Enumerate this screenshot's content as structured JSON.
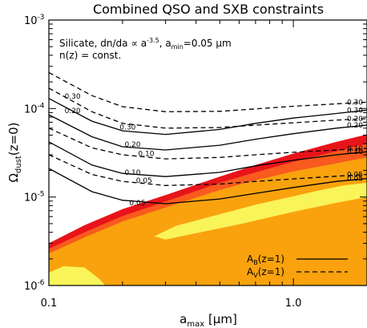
{
  "chart_data": {
    "type": "line",
    "title": "Combined QSO and SXB constraints",
    "xlabel": {
      "main": "a",
      "sub": "max",
      "rest": " [μm]"
    },
    "ylabel": {
      "main": "Ω",
      "sub": "dust",
      "rest": "(z=0)"
    },
    "xscale": "log",
    "yscale": "log",
    "xlim": [
      0.1,
      2.0
    ],
    "ylim": [
      1e-06,
      0.001
    ],
    "grid": false,
    "x_tick_labels": [
      {
        "value": 0.1,
        "label": "0.1"
      },
      {
        "value": 1.0,
        "label": "1.0"
      }
    ],
    "y_tick_labels": [
      {
        "value": 1e-06,
        "base": "10",
        "exp": "-6"
      },
      {
        "value": 1e-05,
        "base": "10",
        "exp": "-5"
      },
      {
        "value": 0.0001,
        "base": "10",
        "exp": "-4"
      },
      {
        "value": 0.001,
        "base": "10",
        "exp": "-3"
      }
    ],
    "annotation": {
      "line1": {
        "pre": "Silicate, dn/da ∝ a",
        "sup": "-3.5",
        "mid": ", a",
        "sub": "min",
        "post": "=0.05 μm"
      },
      "line2": "n(z) = const."
    },
    "legend": {
      "position": "bottom-right",
      "entries": [
        {
          "main": "A",
          "sub": "B",
          "rest": "(z=1)",
          "style": "solid"
        },
        {
          "main": "A",
          "sub": "V",
          "rest": "(z=1)",
          "style": "dashed"
        }
      ]
    },
    "regions": [
      {
        "color": "#e8141a",
        "polygon": [
          [
            0.1,
            3e-06
          ],
          [
            0.14,
            4.8e-06
          ],
          [
            0.2,
            7.3e-06
          ],
          [
            0.3,
            1.05e-05
          ],
          [
            0.5,
            1.7e-05
          ],
          [
            0.7,
            2.3e-05
          ],
          [
            1.0,
            3.1e-05
          ],
          [
            1.5,
            4.2e-05
          ],
          [
            2.0,
            5.1e-05
          ],
          [
            2.0,
            1e-06
          ],
          [
            0.1,
            1e-06
          ]
        ]
      },
      {
        "color": "#f95a1e",
        "polygon": [
          [
            0.1,
            2.6e-06
          ],
          [
            0.14,
            4e-06
          ],
          [
            0.2,
            6.1e-06
          ],
          [
            0.3,
            8.9e-06
          ],
          [
            0.5,
            1.45e-05
          ],
          [
            0.7,
            1.9e-05
          ],
          [
            1.0,
            2.5e-05
          ],
          [
            1.5,
            3.3e-05
          ],
          [
            2.0,
            4e-05
          ],
          [
            2.0,
            1e-06
          ],
          [
            0.1,
            1e-06
          ]
        ]
      },
      {
        "color": "#f9a20d",
        "polygon": [
          [
            0.1,
            2.3e-06
          ],
          [
            0.14,
            3.5e-06
          ],
          [
            0.2,
            5.3e-06
          ],
          [
            0.3,
            7.6e-06
          ],
          [
            0.5,
            1.2e-05
          ],
          [
            0.7,
            1.55e-05
          ],
          [
            1.0,
            1.95e-05
          ],
          [
            1.5,
            2.4e-05
          ],
          [
            2.0,
            2.8e-05
          ],
          [
            2.0,
            1e-06
          ],
          [
            0.1,
            1e-06
          ]
        ]
      },
      {
        "color": "#f9f45a",
        "polygon": [
          [
            0.1,
            1.4e-06
          ],
          [
            0.115,
            1.65e-06
          ],
          [
            0.14,
            1.6e-06
          ],
          [
            0.16,
            1.2e-06
          ],
          [
            0.17,
            1e-06
          ],
          [
            0.1,
            1e-06
          ]
        ]
      },
      {
        "color": "#f9f45a",
        "polygon": [
          [
            0.27,
            3.6e-06
          ],
          [
            0.33,
            4.7e-06
          ],
          [
            0.5,
            6.4e-06
          ],
          [
            0.7,
            8.2e-06
          ],
          [
            1.0,
            1.02e-05
          ],
          [
            1.3,
            1.2e-05
          ],
          [
            1.6,
            1.35e-05
          ],
          [
            2.0,
            1.45e-05
          ],
          [
            2.0,
            1e-05
          ],
          [
            1.5,
            8.6e-06
          ],
          [
            1.0,
            6.8e-06
          ],
          [
            0.6,
            4.9e-06
          ],
          [
            0.4,
            3.9e-06
          ],
          [
            0.3,
            3.3e-06
          ]
        ]
      }
    ],
    "series": [
      {
        "style": "solid",
        "label": "0.05",
        "label_left": {
          "x": 0.23,
          "y": 8.1e-06
        },
        "label_right": "0.05",
        "points": [
          [
            0.1,
            2.1e-05
          ],
          [
            0.15,
            1.15e-05
          ],
          [
            0.2,
            9.2e-06
          ],
          [
            0.3,
            8.4e-06
          ],
          [
            0.5,
            9.5e-06
          ],
          [
            0.7,
            1.1e-05
          ],
          [
            1.0,
            1.28e-05
          ],
          [
            1.5,
            1.5e-05
          ],
          [
            2.0,
            1.62e-05
          ]
        ]
      },
      {
        "style": "solid",
        "label": "0.10",
        "label_left": {
          "x": 0.22,
          "y": 1.78e-05
        },
        "label_right": "0.10",
        "points": [
          [
            0.1,
            4.2e-05
          ],
          [
            0.15,
            2.3e-05
          ],
          [
            0.2,
            1.85e-05
          ],
          [
            0.3,
            1.7e-05
          ],
          [
            0.5,
            1.9e-05
          ],
          [
            0.7,
            2.25e-05
          ],
          [
            1.0,
            2.6e-05
          ],
          [
            1.5,
            3e-05
          ],
          [
            2.0,
            3.25e-05
          ]
        ]
      },
      {
        "style": "solid",
        "label": "0.20",
        "label_left": {
          "x": 0.22,
          "y": 3.7e-05
        },
        "label_right": "0.20",
        "points": [
          [
            0.1,
            8.5e-05
          ],
          [
            0.15,
            4.8e-05
          ],
          [
            0.2,
            3.7e-05
          ],
          [
            0.3,
            3.4e-05
          ],
          [
            0.5,
            3.85e-05
          ],
          [
            0.7,
            4.5e-05
          ],
          [
            1.0,
            5.2e-05
          ],
          [
            1.5,
            6e-05
          ],
          [
            2.0,
            6.5e-05
          ]
        ]
      },
      {
        "style": "solid",
        "label": "0.30",
        "label_left": {
          "x": 0.21,
          "y": 5.8e-05
        },
        "label_right": "0.30",
        "points": [
          [
            0.1,
            0.00013
          ],
          [
            0.15,
            7.2e-05
          ],
          [
            0.2,
            5.6e-05
          ],
          [
            0.3,
            5.1e-05
          ],
          [
            0.5,
            5.8e-05
          ],
          [
            0.7,
            6.8e-05
          ],
          [
            1.0,
            7.8e-05
          ],
          [
            1.5,
            8.8e-05
          ],
          [
            2.0,
            9.6e-05
          ]
        ]
      },
      {
        "style": "dashed",
        "label": "0.05",
        "label_left": {
          "x": 0.245,
          "y": 1.45e-05
        },
        "label_right": "0.05",
        "points": [
          [
            0.1,
            3e-05
          ],
          [
            0.15,
            1.8e-05
          ],
          [
            0.2,
            1.5e-05
          ],
          [
            0.3,
            1.35e-05
          ],
          [
            0.5,
            1.4e-05
          ],
          [
            0.7,
            1.5e-05
          ],
          [
            1.0,
            1.6e-05
          ],
          [
            1.5,
            1.72e-05
          ],
          [
            2.0,
            1.8e-05
          ]
        ]
      },
      {
        "style": "dashed",
        "label": "0.10",
        "label_left": {
          "x": 0.25,
          "y": 2.9e-05
        },
        "label_right": "0.10",
        "points": [
          [
            0.1,
            6e-05
          ],
          [
            0.15,
            3.6e-05
          ],
          [
            0.2,
            3e-05
          ],
          [
            0.3,
            2.7e-05
          ],
          [
            0.5,
            2.8e-05
          ],
          [
            0.7,
            3e-05
          ],
          [
            1.0,
            3.2e-05
          ],
          [
            1.5,
            3.4e-05
          ],
          [
            2.0,
            3.55e-05
          ]
        ]
      },
      {
        "style": "dashed",
        "label": "0.20",
        "label_left": {
          "x": 0.125,
          "y": 8.9e-05
        },
        "label_right": "0.20",
        "points": [
          [
            0.1,
            0.00017
          ],
          [
            0.15,
            9.2e-05
          ],
          [
            0.2,
            6.8e-05
          ],
          [
            0.3,
            6e-05
          ],
          [
            0.5,
            6.1e-05
          ],
          [
            0.7,
            6.5e-05
          ],
          [
            1.0,
            6.9e-05
          ],
          [
            1.5,
            7.4e-05
          ],
          [
            2.0,
            7.7e-05
          ]
        ]
      },
      {
        "style": "dashed",
        "label": "0.30",
        "label_left": {
          "x": 0.125,
          "y": 0.00013
        },
        "label_right": "0.30",
        "points": [
          [
            0.1,
            0.000255
          ],
          [
            0.15,
            0.00014
          ],
          [
            0.2,
            0.000105
          ],
          [
            0.3,
            9.2e-05
          ],
          [
            0.5,
            9.3e-05
          ],
          [
            0.7,
            9.9e-05
          ],
          [
            1.0,
            0.000106
          ],
          [
            1.5,
            0.000113
          ],
          [
            2.0,
            0.000118
          ]
        ]
      }
    ]
  }
}
